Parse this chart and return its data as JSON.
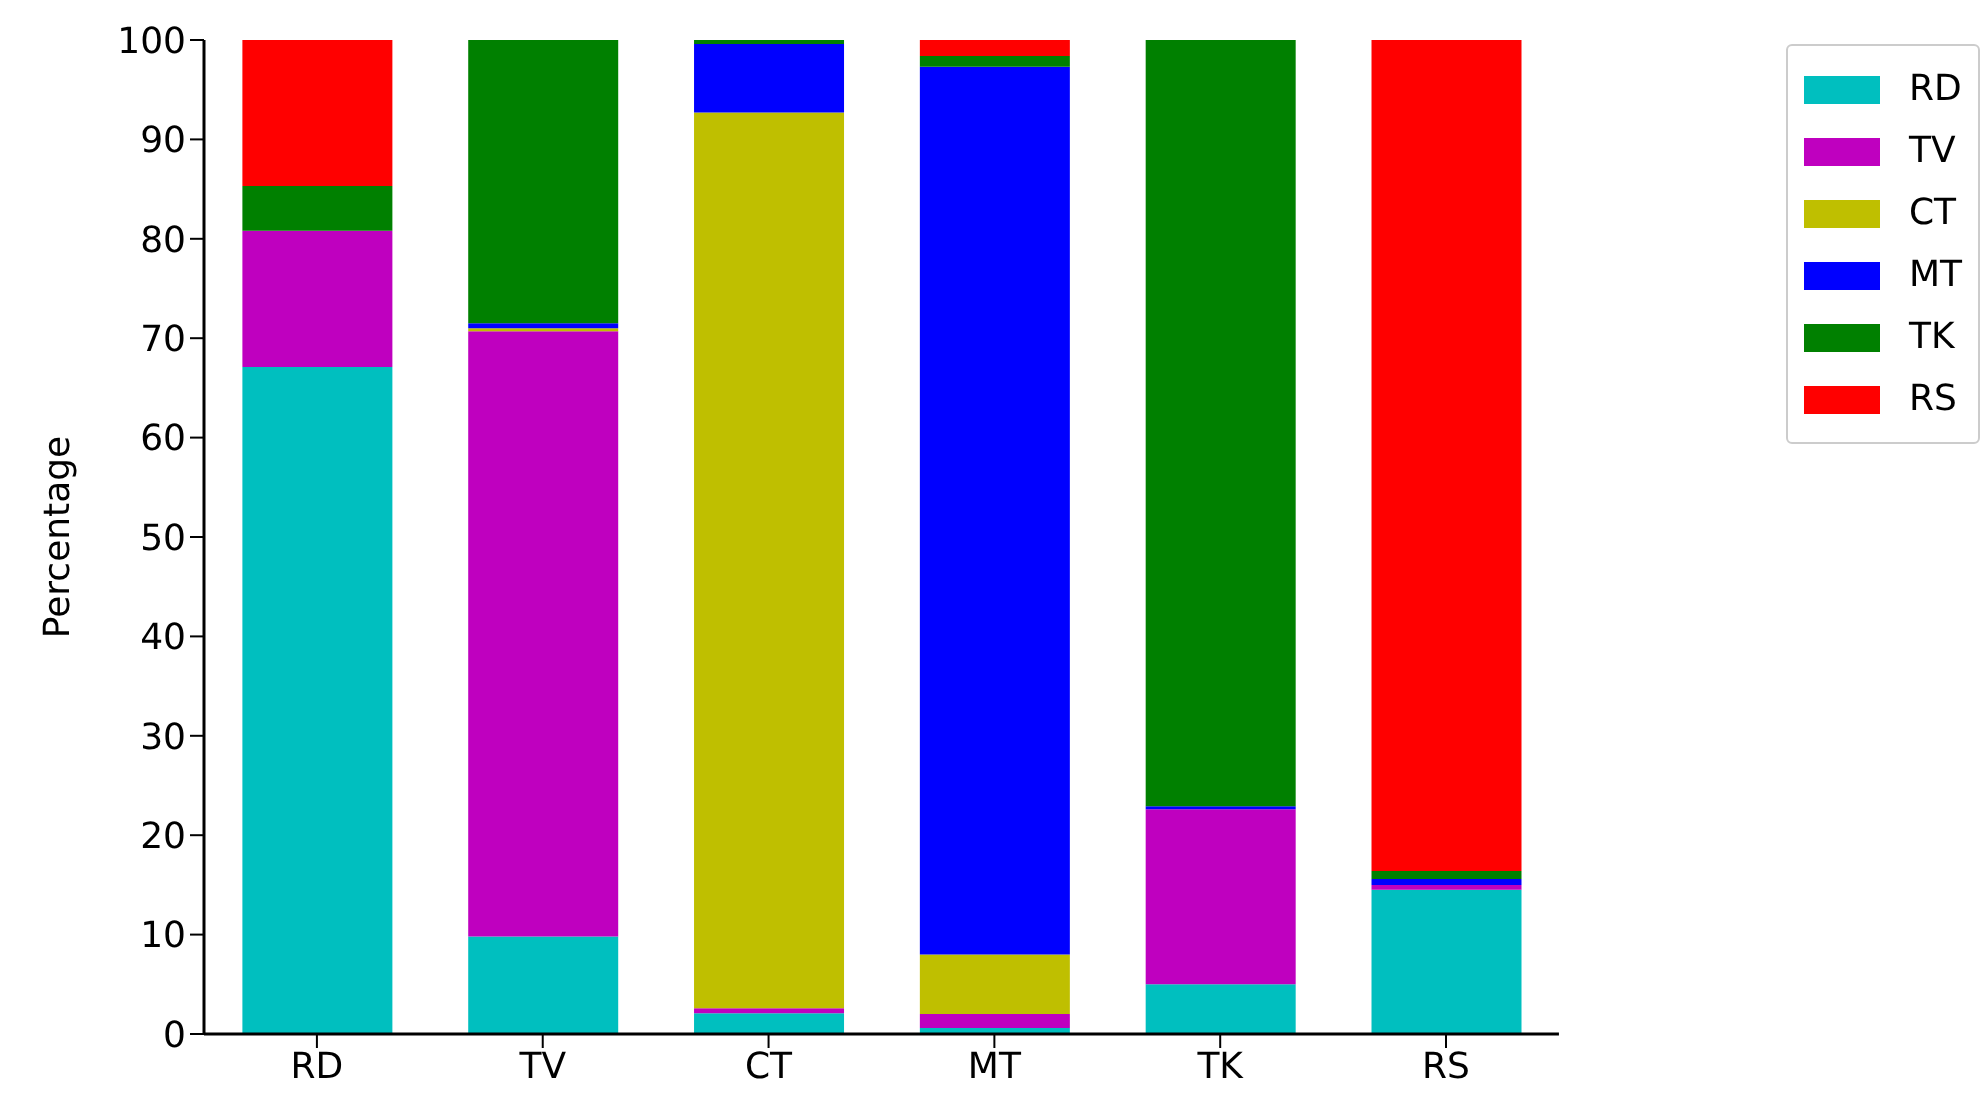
{
  "chart_data": {
    "type": "bar",
    "stacked": true,
    "ylabel": "Percentage",
    "categories": [
      "RD",
      "TV",
      "CT",
      "MT",
      "TK",
      "RS"
    ],
    "series": [
      {
        "name": "RD",
        "color": "#00bfbf",
        "values": [
          67.1,
          9.8,
          2.1,
          0.6,
          5.0,
          14.5
        ]
      },
      {
        "name": "TV",
        "color": "#bf00bf",
        "values": [
          13.7,
          60.9,
          0.5,
          1.4,
          17.6,
          0.5
        ]
      },
      {
        "name": "CT",
        "color": "#bfbf00",
        "values": [
          0,
          0.3,
          90.1,
          6.0,
          0,
          0
        ]
      },
      {
        "name": "MT",
        "color": "#0000ff",
        "values": [
          0,
          0.5,
          6.9,
          89.3,
          0.3,
          0.6
        ]
      },
      {
        "name": "TK",
        "color": "#008000",
        "values": [
          4.5,
          28.5,
          0.4,
          1.1,
          77.1,
          0.8
        ]
      },
      {
        "name": "RS",
        "color": "#ff0000",
        "values": [
          14.7,
          0,
          0,
          1.6,
          0,
          83.6
        ]
      }
    ],
    "ylim": [
      0,
      100
    ],
    "yticks": [
      0,
      10,
      20,
      30,
      40,
      50,
      60,
      70,
      80,
      90,
      100
    ],
    "grid": false,
    "legend": "top right"
  }
}
